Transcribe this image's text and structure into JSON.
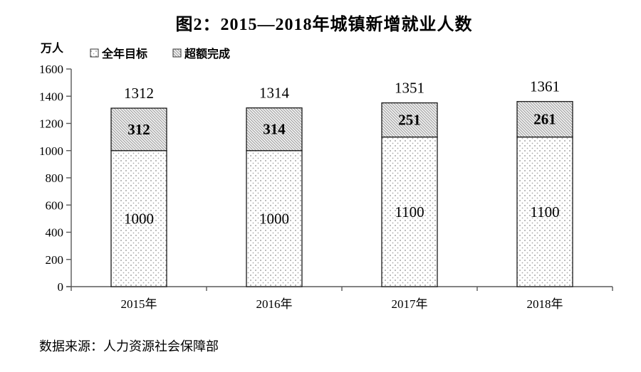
{
  "title": "图2：2015—2018年城镇新增就业人数",
  "unit_label": "万人",
  "legend": {
    "items": [
      {
        "label": "全年目标",
        "pattern": "dots"
      },
      {
        "label": "超额完成",
        "pattern": "hatch"
      }
    ]
  },
  "source": "数据来源：人力资源社会保障部",
  "colors": {
    "text": "#000000",
    "axis": "#595959",
    "bar_border": "#1a1a1a",
    "dot_fill": "#8c8c8c",
    "hatch_line": "#a6a6a6",
    "hatch_bg": "#f7f7f7",
    "dots_bg": "#ffffff"
  },
  "chart_data": {
    "type": "bar",
    "stacked": true,
    "title": "图2：2015—2018年城镇新增就业人数",
    "ylabel": "万人",
    "xlabel": "",
    "categories": [
      "2015年",
      "2016年",
      "2017年",
      "2018年"
    ],
    "series": [
      {
        "name": "全年目标",
        "pattern": "dots",
        "values": [
          1000,
          1000,
          1100,
          1100
        ]
      },
      {
        "name": "超额完成",
        "pattern": "hatch",
        "values": [
          312,
          314,
          251,
          261
        ]
      }
    ],
    "totals": [
      1312,
      1314,
      1351,
      1361
    ],
    "ylim": [
      0,
      1600
    ],
    "ytick_step": 200,
    "grid": false,
    "legend_position": "top-left"
  }
}
